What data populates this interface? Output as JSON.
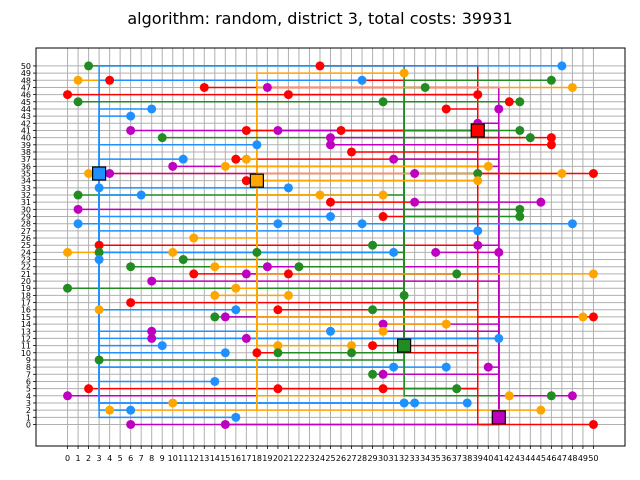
{
  "chart_data": {
    "type": "scatter",
    "title": "algorithm: random, district 3, total costs: 39931",
    "xlim": [
      -3,
      53
    ],
    "ylim": [
      -3,
      52.5
    ],
    "x_ticks": [
      0,
      1,
      2,
      3,
      4,
      5,
      6,
      7,
      8,
      9,
      10,
      11,
      12,
      13,
      14,
      15,
      16,
      17,
      18,
      19,
      20,
      21,
      22,
      23,
      24,
      25,
      26,
      27,
      28,
      29,
      30,
      31,
      32,
      33,
      34,
      35,
      36,
      37,
      38,
      39,
      40,
      41,
      42,
      43,
      44,
      45,
      46,
      47,
      48,
      49,
      50
    ],
    "y_ticks": [
      0,
      1,
      2,
      3,
      4,
      5,
      6,
      7,
      8,
      9,
      10,
      11,
      12,
      13,
      14,
      15,
      16,
      17,
      18,
      19,
      20,
      21,
      22,
      23,
      24,
      25,
      26,
      27,
      28,
      29,
      30,
      31,
      32,
      33,
      34,
      35,
      36,
      37,
      38,
      39,
      40,
      41,
      42,
      43,
      44,
      45,
      46,
      47,
      48,
      49,
      50
    ],
    "grid": true,
    "colors": {
      "blue": "#1e90ff",
      "orange": "#ffa500",
      "green": "#228b22",
      "red": "#ff0000",
      "purple": "#c000c0",
      "grid": "#b0b0b0"
    },
    "batteries": [
      {
        "x": 3,
        "y": 35,
        "color": "blue"
      },
      {
        "x": 18,
        "y": 34,
        "color": "orange"
      },
      {
        "x": 39,
        "y": 41,
        "color": "red"
      },
      {
        "x": 32,
        "y": 11,
        "color": "green"
      },
      {
        "x": 41,
        "y": 1,
        "color": "purple"
      }
    ],
    "houses": [
      {
        "x": 2,
        "y": 50,
        "color": "green"
      },
      {
        "x": 24,
        "y": 50,
        "color": "red"
      },
      {
        "x": 47,
        "y": 50,
        "color": "blue"
      },
      {
        "x": 1,
        "y": 48,
        "color": "orange"
      },
      {
        "x": 4,
        "y": 48,
        "color": "red"
      },
      {
        "x": 28,
        "y": 48,
        "color": "blue"
      },
      {
        "x": 32,
        "y": 49,
        "color": "orange"
      },
      {
        "x": 46,
        "y": 48,
        "color": "green"
      },
      {
        "x": 13,
        "y": 47,
        "color": "red"
      },
      {
        "x": 19,
        "y": 47,
        "color": "purple"
      },
      {
        "x": 34,
        "y": 47,
        "color": "green"
      },
      {
        "x": 48,
        "y": 47,
        "color": "orange"
      },
      {
        "x": 0,
        "y": 46,
        "color": "red"
      },
      {
        "x": 21,
        "y": 46,
        "color": "red"
      },
      {
        "x": 39,
        "y": 46,
        "color": "red"
      },
      {
        "x": 1,
        "y": 45,
        "color": "green"
      },
      {
        "x": 30,
        "y": 45,
        "color": "green"
      },
      {
        "x": 42,
        "y": 45,
        "color": "red"
      },
      {
        "x": 43,
        "y": 45,
        "color": "green"
      },
      {
        "x": 8,
        "y": 44,
        "color": "blue"
      },
      {
        "x": 36,
        "y": 44,
        "color": "red"
      },
      {
        "x": 41,
        "y": 44,
        "color": "purple"
      },
      {
        "x": 6,
        "y": 43,
        "color": "blue"
      },
      {
        "x": 39,
        "y": 42,
        "color": "purple"
      },
      {
        "x": 6,
        "y": 41,
        "color": "purple"
      },
      {
        "x": 17,
        "y": 41,
        "color": "red"
      },
      {
        "x": 20,
        "y": 41,
        "color": "purple"
      },
      {
        "x": 26,
        "y": 41,
        "color": "red"
      },
      {
        "x": 43,
        "y": 41,
        "color": "green"
      },
      {
        "x": 9,
        "y": 40,
        "color": "green"
      },
      {
        "x": 25,
        "y": 40,
        "color": "purple"
      },
      {
        "x": 44,
        "y": 40,
        "color": "green"
      },
      {
        "x": 46,
        "y": 40,
        "color": "red"
      },
      {
        "x": 18,
        "y": 39,
        "color": "blue"
      },
      {
        "x": 25,
        "y": 39,
        "color": "purple"
      },
      {
        "x": 46,
        "y": 39,
        "color": "red"
      },
      {
        "x": 27,
        "y": 38,
        "color": "red"
      },
      {
        "x": 11,
        "y": 37,
        "color": "blue"
      },
      {
        "x": 16,
        "y": 37,
        "color": "red"
      },
      {
        "x": 17,
        "y": 37,
        "color": "orange"
      },
      {
        "x": 31,
        "y": 37,
        "color": "purple"
      },
      {
        "x": 10,
        "y": 36,
        "color": "purple"
      },
      {
        "x": 15,
        "y": 36,
        "color": "orange"
      },
      {
        "x": 40,
        "y": 36,
        "color": "orange"
      },
      {
        "x": 2,
        "y": 35,
        "color": "orange"
      },
      {
        "x": 4,
        "y": 35,
        "color": "purple"
      },
      {
        "x": 33,
        "y": 35,
        "color": "purple"
      },
      {
        "x": 39,
        "y": 35,
        "color": "green"
      },
      {
        "x": 47,
        "y": 35,
        "color": "orange"
      },
      {
        "x": 50,
        "y": 35,
        "color": "red"
      },
      {
        "x": 17,
        "y": 34,
        "color": "red"
      },
      {
        "x": 39,
        "y": 34,
        "color": "orange"
      },
      {
        "x": 3,
        "y": 33,
        "color": "blue"
      },
      {
        "x": 21,
        "y": 33,
        "color": "blue"
      },
      {
        "x": 1,
        "y": 32,
        "color": "green"
      },
      {
        "x": 7,
        "y": 32,
        "color": "blue"
      },
      {
        "x": 24,
        "y": 32,
        "color": "orange"
      },
      {
        "x": 30,
        "y": 32,
        "color": "orange"
      },
      {
        "x": 25,
        "y": 31,
        "color": "red"
      },
      {
        "x": 33,
        "y": 31,
        "color": "purple"
      },
      {
        "x": 45,
        "y": 31,
        "color": "purple"
      },
      {
        "x": 1,
        "y": 30,
        "color": "purple"
      },
      {
        "x": 43,
        "y": 30,
        "color": "green"
      },
      {
        "x": 25,
        "y": 29,
        "color": "blue"
      },
      {
        "x": 30,
        "y": 29,
        "color": "red"
      },
      {
        "x": 43,
        "y": 29,
        "color": "green"
      },
      {
        "x": 1,
        "y": 28,
        "color": "blue"
      },
      {
        "x": 20,
        "y": 28,
        "color": "blue"
      },
      {
        "x": 28,
        "y": 28,
        "color": "blue"
      },
      {
        "x": 48,
        "y": 28,
        "color": "blue"
      },
      {
        "x": 39,
        "y": 27,
        "color": "blue"
      },
      {
        "x": 12,
        "y": 26,
        "color": "orange"
      },
      {
        "x": 3,
        "y": 25,
        "color": "red"
      },
      {
        "x": 29,
        "y": 25,
        "color": "green"
      },
      {
        "x": 39,
        "y": 25,
        "color": "purple"
      },
      {
        "x": 0,
        "y": 24,
        "color": "orange"
      },
      {
        "x": 3,
        "y": 24,
        "color": "green"
      },
      {
        "x": 10,
        "y": 24,
        "color": "orange"
      },
      {
        "x": 18,
        "y": 24,
        "color": "green"
      },
      {
        "x": 31,
        "y": 24,
        "color": "blue"
      },
      {
        "x": 35,
        "y": 24,
        "color": "purple"
      },
      {
        "x": 41,
        "y": 24,
        "color": "purple"
      },
      {
        "x": 3,
        "y": 23,
        "color": "blue"
      },
      {
        "x": 11,
        "y": 23,
        "color": "green"
      },
      {
        "x": 6,
        "y": 22,
        "color": "green"
      },
      {
        "x": 14,
        "y": 22,
        "color": "orange"
      },
      {
        "x": 19,
        "y": 22,
        "color": "purple"
      },
      {
        "x": 22,
        "y": 22,
        "color": "green"
      },
      {
        "x": 12,
        "y": 21,
        "color": "red"
      },
      {
        "x": 17,
        "y": 21,
        "color": "purple"
      },
      {
        "x": 21,
        "y": 21,
        "color": "red"
      },
      {
        "x": 37,
        "y": 21,
        "color": "green"
      },
      {
        "x": 50,
        "y": 21,
        "color": "orange"
      },
      {
        "x": 8,
        "y": 20,
        "color": "purple"
      },
      {
        "x": 0,
        "y": 19,
        "color": "green"
      },
      {
        "x": 16,
        "y": 19,
        "color": "orange"
      },
      {
        "x": 14,
        "y": 18,
        "color": "orange"
      },
      {
        "x": 21,
        "y": 18,
        "color": "orange"
      },
      {
        "x": 32,
        "y": 18,
        "color": "green"
      },
      {
        "x": 6,
        "y": 17,
        "color": "red"
      },
      {
        "x": 3,
        "y": 16,
        "color": "orange"
      },
      {
        "x": 16,
        "y": 16,
        "color": "blue"
      },
      {
        "x": 20,
        "y": 16,
        "color": "red"
      },
      {
        "x": 29,
        "y": 16,
        "color": "green"
      },
      {
        "x": 14,
        "y": 15,
        "color": "green"
      },
      {
        "x": 15,
        "y": 15,
        "color": "purple"
      },
      {
        "x": 49,
        "y": 15,
        "color": "orange"
      },
      {
        "x": 50,
        "y": 15,
        "color": "red"
      },
      {
        "x": 30,
        "y": 14,
        "color": "purple"
      },
      {
        "x": 36,
        "y": 14,
        "color": "orange"
      },
      {
        "x": 8,
        "y": 13,
        "color": "purple"
      },
      {
        "x": 25,
        "y": 13,
        "color": "blue"
      },
      {
        "x": 30,
        "y": 13,
        "color": "orange"
      },
      {
        "x": 8,
        "y": 12,
        "color": "purple"
      },
      {
        "x": 17,
        "y": 12,
        "color": "purple"
      },
      {
        "x": 41,
        "y": 12,
        "color": "blue"
      },
      {
        "x": 9,
        "y": 11,
        "color": "blue"
      },
      {
        "x": 20,
        "y": 11,
        "color": "orange"
      },
      {
        "x": 27,
        "y": 11,
        "color": "orange"
      },
      {
        "x": 29,
        "y": 11,
        "color": "red"
      },
      {
        "x": 15,
        "y": 10,
        "color": "blue"
      },
      {
        "x": 18,
        "y": 10,
        "color": "red"
      },
      {
        "x": 20,
        "y": 10,
        "color": "green"
      },
      {
        "x": 27,
        "y": 10,
        "color": "green"
      },
      {
        "x": 3,
        "y": 9,
        "color": "green"
      },
      {
        "x": 31,
        "y": 8,
        "color": "blue"
      },
      {
        "x": 36,
        "y": 8,
        "color": "blue"
      },
      {
        "x": 40,
        "y": 8,
        "color": "purple"
      },
      {
        "x": 29,
        "y": 7,
        "color": "green"
      },
      {
        "x": 30,
        "y": 7,
        "color": "purple"
      },
      {
        "x": 14,
        "y": 6,
        "color": "blue"
      },
      {
        "x": 2,
        "y": 5,
        "color": "red"
      },
      {
        "x": 20,
        "y": 5,
        "color": "red"
      },
      {
        "x": 30,
        "y": 5,
        "color": "red"
      },
      {
        "x": 37,
        "y": 5,
        "color": "green"
      },
      {
        "x": 0,
        "y": 4,
        "color": "purple"
      },
      {
        "x": 42,
        "y": 4,
        "color": "orange"
      },
      {
        "x": 46,
        "y": 4,
        "color": "green"
      },
      {
        "x": 48,
        "y": 4,
        "color": "purple"
      },
      {
        "x": 10,
        "y": 3,
        "color": "orange"
      },
      {
        "x": 32,
        "y": 3,
        "color": "blue"
      },
      {
        "x": 33,
        "y": 3,
        "color": "blue"
      },
      {
        "x": 38,
        "y": 3,
        "color": "blue"
      },
      {
        "x": 4,
        "y": 2,
        "color": "orange"
      },
      {
        "x": 6,
        "y": 2,
        "color": "blue"
      },
      {
        "x": 45,
        "y": 2,
        "color": "orange"
      },
      {
        "x": 16,
        "y": 1,
        "color": "blue"
      },
      {
        "x": 6,
        "y": 0,
        "color": "purple"
      },
      {
        "x": 15,
        "y": 0,
        "color": "purple"
      },
      {
        "x": 50,
        "y": 0,
        "color": "red"
      }
    ]
  }
}
